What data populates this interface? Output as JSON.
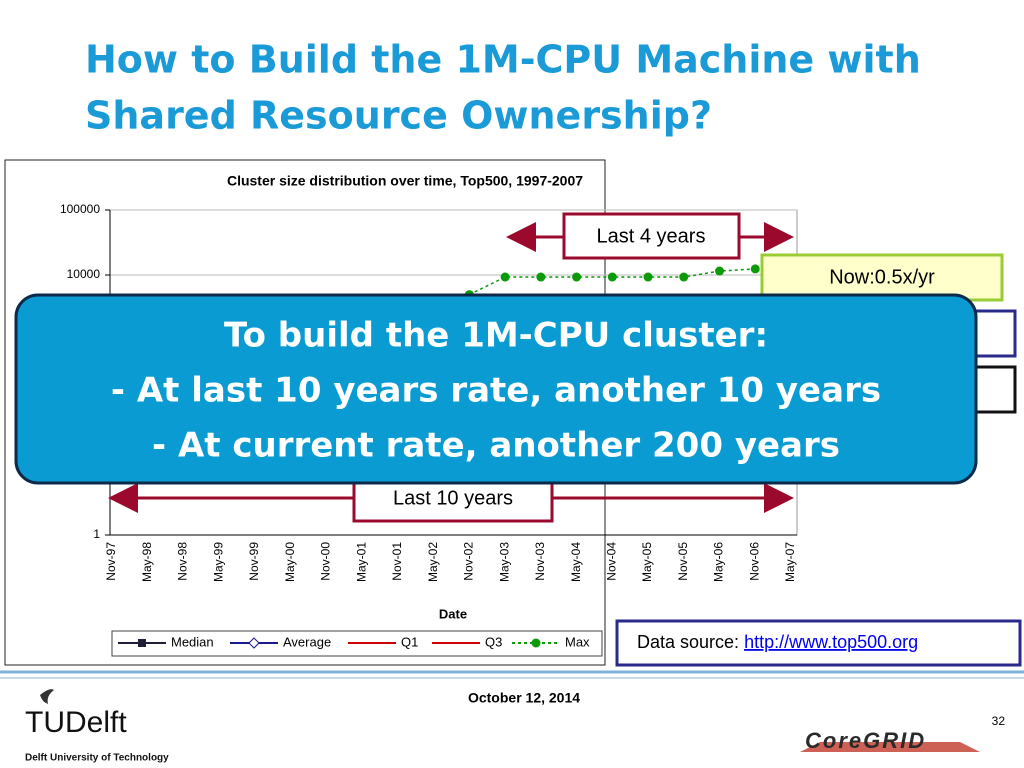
{
  "title": [
    "How to Build the 1M-CPU Machine with",
    "Shared Resource Ownership?"
  ],
  "chart_data": {
    "type": "line",
    "title": "Cluster size distribution over time, Top500, 1997-2007",
    "x_label": "Date",
    "categories": [
      "Nov-97",
      "May-98",
      "Nov-98",
      "May-99",
      "Nov-99",
      "May-00",
      "Nov-00",
      "May-01",
      "Nov-01",
      "May-02",
      "Nov-02",
      "May-03",
      "Nov-03",
      "May-04",
      "Nov-04",
      "May-05",
      "Nov-05",
      "May-06",
      "Nov-06",
      "May-07"
    ],
    "log_y": true,
    "ylim": [
      1,
      100000
    ],
    "yticks": [
      1,
      10000,
      100000
    ],
    "grid": true,
    "series": [
      {
        "name": "Median",
        "color": "#1f1f3a",
        "marker": "square",
        "values": [
          null,
          null,
          null,
          null,
          null,
          null,
          null,
          null,
          null,
          null,
          null,
          null,
          null,
          null,
          null,
          null,
          null,
          null,
          null,
          null
        ]
      },
      {
        "name": "Average",
        "color": "#1a1a8c",
        "marker": "diamond",
        "values": [
          null,
          null,
          null,
          null,
          null,
          null,
          null,
          null,
          null,
          null,
          null,
          null,
          null,
          null,
          null,
          null,
          null,
          null,
          null,
          null
        ]
      },
      {
        "name": "Q1",
        "color": "#cc0000",
        "marker": "none",
        "values": [
          null,
          null,
          null,
          null,
          null,
          null,
          null,
          null,
          null,
          null,
          null,
          null,
          null,
          null,
          null,
          null,
          null,
          null,
          null,
          null
        ]
      },
      {
        "name": "Q3",
        "color": "#cc0000",
        "marker": "none",
        "values": [
          null,
          null,
          null,
          null,
          null,
          null,
          null,
          null,
          null,
          null,
          null,
          null,
          null,
          null,
          null,
          null,
          null,
          null,
          null,
          null
        ]
      },
      {
        "name": "Max",
        "color": "#0a9a0a",
        "marker": "circle",
        "dashed": true,
        "values": [
          null,
          null,
          null,
          null,
          null,
          null,
          null,
          null,
          null,
          null,
          5000,
          9300,
          9300,
          9300,
          9300,
          9300,
          9300,
          11500,
          12400,
          null
        ]
      }
    ],
    "annotations": {
      "last4": "Last 4 years",
      "last10": "Last 10 years",
      "now": "Now:0.5x/yr"
    }
  },
  "callout": [
    "To build the 1M-CPU cluster:",
    "- At last 10 years rate, another 10 years",
    "- At current rate, another 200 years"
  ],
  "source": {
    "label": "Data source:",
    "link": "http://www.top500.org"
  },
  "footer": {
    "date": "October 12, 2014",
    "page": "32",
    "logo": "TUDelft",
    "university": "Delft University of Technology",
    "partner": "CoreGRID"
  }
}
